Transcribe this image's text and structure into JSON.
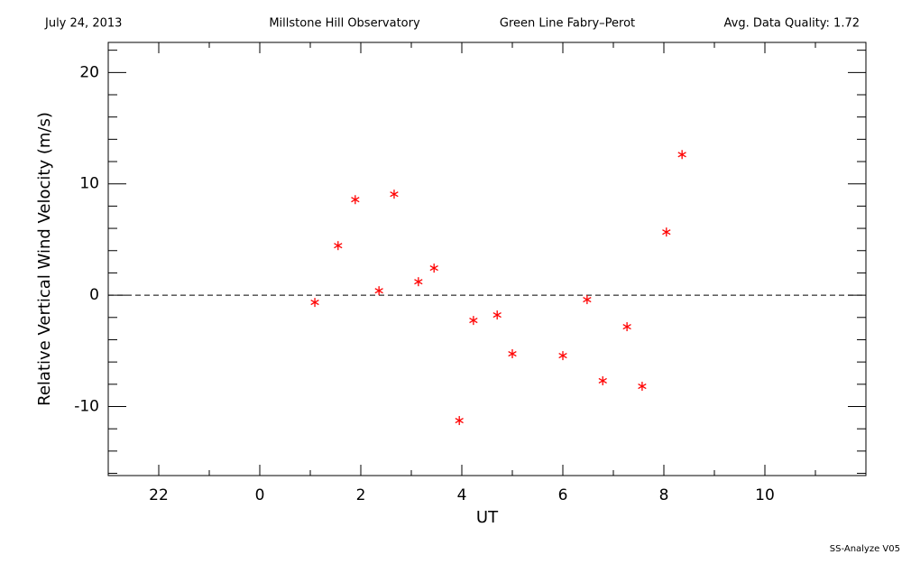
{
  "chart_data": {
    "type": "scatter",
    "header": [
      "July 24, 2013",
      "Millstone Hill Observatory",
      "Green Line Fabry–Perot",
      "Avg. Data Quality: 1.72"
    ],
    "footer": "SS-Analyze V05",
    "xlabel": "UT",
    "ylabel": "Relative Vertical Wind Velocity (m/s)",
    "xlim": [
      -3,
      12
    ],
    "ylim": [
      -16.2,
      22.7
    ],
    "xticks": [
      {
        "value": -2,
        "label": "22"
      },
      0,
      2,
      4,
      6,
      8,
      10
    ],
    "minor_xticks": [
      -3,
      -1,
      1,
      3,
      5,
      7,
      9,
      11
    ],
    "yticks": [
      -10,
      0,
      10,
      20
    ],
    "minor_yticks": [
      -16,
      -14,
      -12,
      -8,
      -6,
      -4,
      -2,
      2,
      4,
      6,
      8,
      12,
      14,
      16,
      18,
      22
    ],
    "reference_line": 0,
    "color": "#ff0000",
    "x": [
      1.09,
      1.55,
      1.89,
      2.36,
      2.66,
      3.14,
      3.45,
      3.95,
      4.23,
      4.7,
      5.0,
      6.0,
      6.48,
      6.79,
      7.27,
      7.57,
      8.05,
      8.36
    ],
    "values": [
      -0.65,
      4.45,
      8.58,
      0.4,
      9.07,
      1.21,
      2.43,
      -11.26,
      -2.27,
      -1.78,
      -5.26,
      -5.43,
      -0.4,
      -7.69,
      -2.83,
      -8.18,
      5.67,
      12.63
    ]
  }
}
